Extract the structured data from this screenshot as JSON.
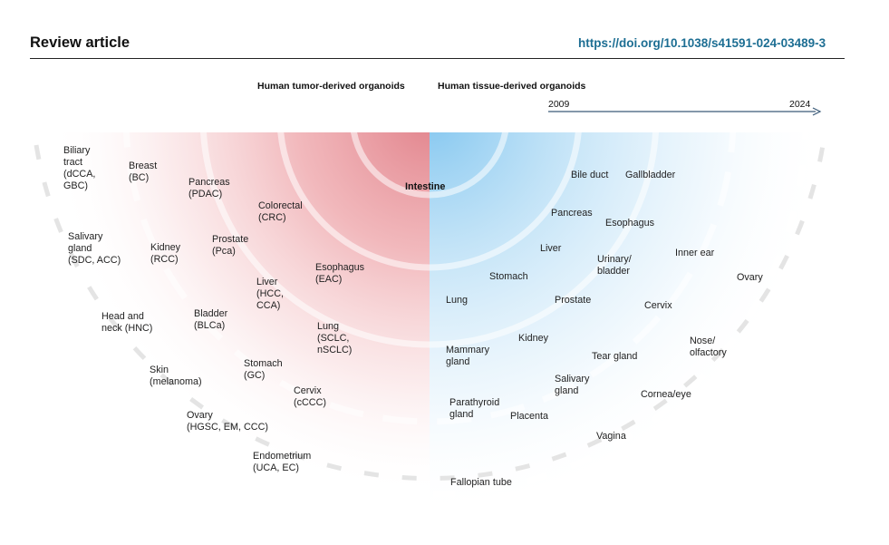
{
  "header": {
    "title": "Review article",
    "doi": "https://doi.org/10.1038/s41591-024-03489-3"
  },
  "figure": {
    "left_heading": "Human tumor-derived organoids",
    "right_heading": "Human tissue-derived organoids",
    "timeline": {
      "start": "2009",
      "end": "2024"
    },
    "center_label": "Intestine",
    "colors": {
      "tumor": "#e8868c",
      "tissue": "#86c8ee",
      "axis": "#3a5a78"
    },
    "tumor_labels": [
      "Biliary\ntract\n(dCCA,\nGBC)",
      "Breast\n(BC)",
      "Pancreas\n(PDAC)",
      "Colorectal\n(CRC)",
      "Salivary\ngland\n(SDC, ACC)",
      "Kidney\n(RCC)",
      "Prostate\n(Pca)",
      "Esophagus\n(EAC)",
      "Liver\n(HCC,\nCCA)",
      "Head and\nneck (HNC)",
      "Bladder\n(BLCa)",
      "Lung\n(SCLC,\nnSCLC)",
      "Skin\n(melanoma)",
      "Stomach\n(GC)",
      "Cervix\n(cCCC)",
      "Ovary\n(HGSC, EM, CCC)",
      "Endometrium\n(UCA, EC)"
    ],
    "tissue_labels": [
      "Bile duct",
      "Gallbladder",
      "Pancreas",
      "Esophagus",
      "Liver",
      "Urinary/\nbladder",
      "Inner ear",
      "Stomach",
      "Ovary",
      "Lung",
      "Prostate",
      "Cervix",
      "Kidney",
      "Mammary\ngland",
      "Nose/\nolfactory",
      "Tear gland",
      "Salivary\ngland",
      "Cornea/eye",
      "Parathyroid\ngland",
      "Placenta",
      "Vagina",
      "Fallopian tube"
    ]
  }
}
